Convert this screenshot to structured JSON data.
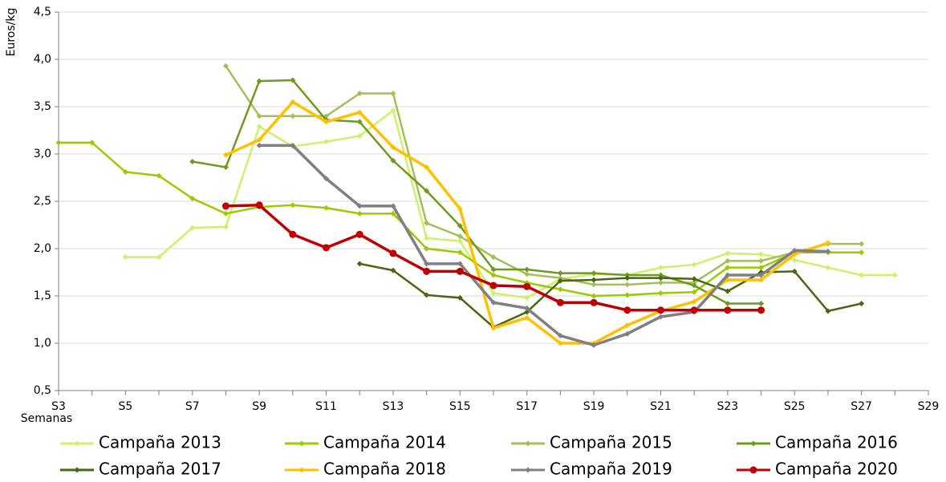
{
  "chart_data": {
    "type": "line",
    "y_label": "Euros/kg",
    "x_label": "Semanas",
    "categories": [
      "S3",
      null,
      "S5",
      null,
      "S7",
      null,
      "S9",
      null,
      "S11",
      null,
      "S13",
      null,
      "S15",
      null,
      "S17",
      null,
      "S19",
      null,
      "S21",
      null,
      "S23",
      null,
      "S25",
      null,
      "S27",
      null,
      "S29"
    ],
    "ylim": [
      0.5,
      4.5
    ],
    "yticks": [
      {
        "value": 0.5,
        "label": "0,5"
      },
      {
        "value": 1.0,
        "label": "1,0"
      },
      {
        "value": 1.5,
        "label": "1,5"
      },
      {
        "value": 2.0,
        "label": "2,0"
      },
      {
        "value": 2.5,
        "label": "2,5"
      },
      {
        "value": 3.0,
        "label": "3,0"
      },
      {
        "value": 3.5,
        "label": "3,5"
      },
      {
        "value": 4.0,
        "label": "4,0"
      },
      {
        "value": 4.5,
        "label": "4,5"
      }
    ],
    "grid": true,
    "legend": "bottom",
    "series": [
      {
        "name": "Campaña 2013",
        "color": "#ccf26a",
        "marker": "diamond",
        "values": [
          null,
          null,
          1.91,
          1.91,
          2.22,
          2.23,
          3.29,
          3.08,
          3.13,
          3.19,
          3.46,
          2.11,
          2.08,
          1.53,
          1.48,
          1.68,
          1.73,
          1.72,
          1.8,
          1.83,
          1.95,
          1.94,
          1.88,
          1.8,
          1.72,
          1.72,
          null
        ]
      },
      {
        "name": "Campaña 2014",
        "color": "#99cc00",
        "marker": "diamond",
        "values": [
          3.12,
          3.12,
          2.81,
          2.77,
          2.53,
          2.37,
          2.44,
          2.46,
          2.43,
          2.37,
          2.37,
          2.0,
          1.96,
          1.72,
          1.64,
          1.57,
          1.5,
          1.51,
          1.53,
          1.54,
          1.8,
          1.8,
          1.96,
          1.96,
          1.96,
          null,
          null
        ]
      },
      {
        "name": "Campaña 2015",
        "color": "#a4bf5a",
        "marker": "diamond",
        "values": [
          null,
          null,
          null,
          null,
          null,
          3.93,
          3.4,
          3.4,
          3.4,
          3.64,
          3.64,
          2.27,
          2.13,
          1.91,
          1.73,
          1.69,
          1.62,
          1.62,
          1.64,
          1.64,
          1.87,
          1.87,
          1.96,
          2.05,
          2.05,
          null,
          null
        ]
      },
      {
        "name": "Campaña 2016",
        "color": "#6f9a1c",
        "marker": "diamond",
        "values": [
          null,
          null,
          null,
          null,
          2.92,
          2.86,
          3.77,
          3.78,
          3.36,
          3.34,
          2.93,
          2.61,
          2.24,
          1.78,
          1.78,
          1.74,
          1.74,
          1.72,
          1.72,
          1.61,
          1.42,
          1.42,
          null,
          null,
          null,
          null,
          null
        ]
      },
      {
        "name": "Campaña 2017",
        "color": "#4a6614",
        "marker": "diamond",
        "values": [
          null,
          null,
          null,
          null,
          null,
          null,
          null,
          null,
          null,
          1.84,
          1.77,
          1.51,
          1.48,
          1.17,
          1.33,
          1.66,
          1.67,
          1.69,
          1.69,
          1.68,
          1.55,
          1.75,
          1.76,
          1.34,
          1.42,
          null,
          null
        ]
      },
      {
        "name": "Campaña 2018",
        "color": "#ffc000",
        "marker": "diamond",
        "values": [
          null,
          null,
          null,
          null,
          null,
          2.99,
          3.15,
          3.55,
          3.34,
          3.44,
          3.07,
          2.86,
          2.42,
          1.16,
          1.27,
          1.0,
          1.0,
          1.19,
          1.34,
          1.44,
          1.67,
          1.67,
          1.94,
          2.06,
          null,
          null,
          null
        ]
      },
      {
        "name": "Campaña 2019",
        "color": "#808080",
        "marker": "diamond",
        "values": [
          null,
          null,
          null,
          null,
          null,
          null,
          3.09,
          3.09,
          2.74,
          2.45,
          2.45,
          1.84,
          1.84,
          1.43,
          1.37,
          1.08,
          0.98,
          1.1,
          1.28,
          1.33,
          1.72,
          1.72,
          1.98,
          1.97,
          null,
          null,
          null
        ]
      },
      {
        "name": "Campaña 2020",
        "color": "#c00000",
        "marker": "circle",
        "values": [
          null,
          null,
          null,
          null,
          null,
          2.45,
          2.46,
          2.15,
          2.01,
          2.15,
          1.95,
          1.76,
          1.76,
          1.61,
          1.6,
          1.43,
          1.43,
          1.35,
          1.35,
          1.35,
          1.35,
          1.35,
          null,
          null,
          null,
          null,
          null
        ]
      }
    ]
  }
}
